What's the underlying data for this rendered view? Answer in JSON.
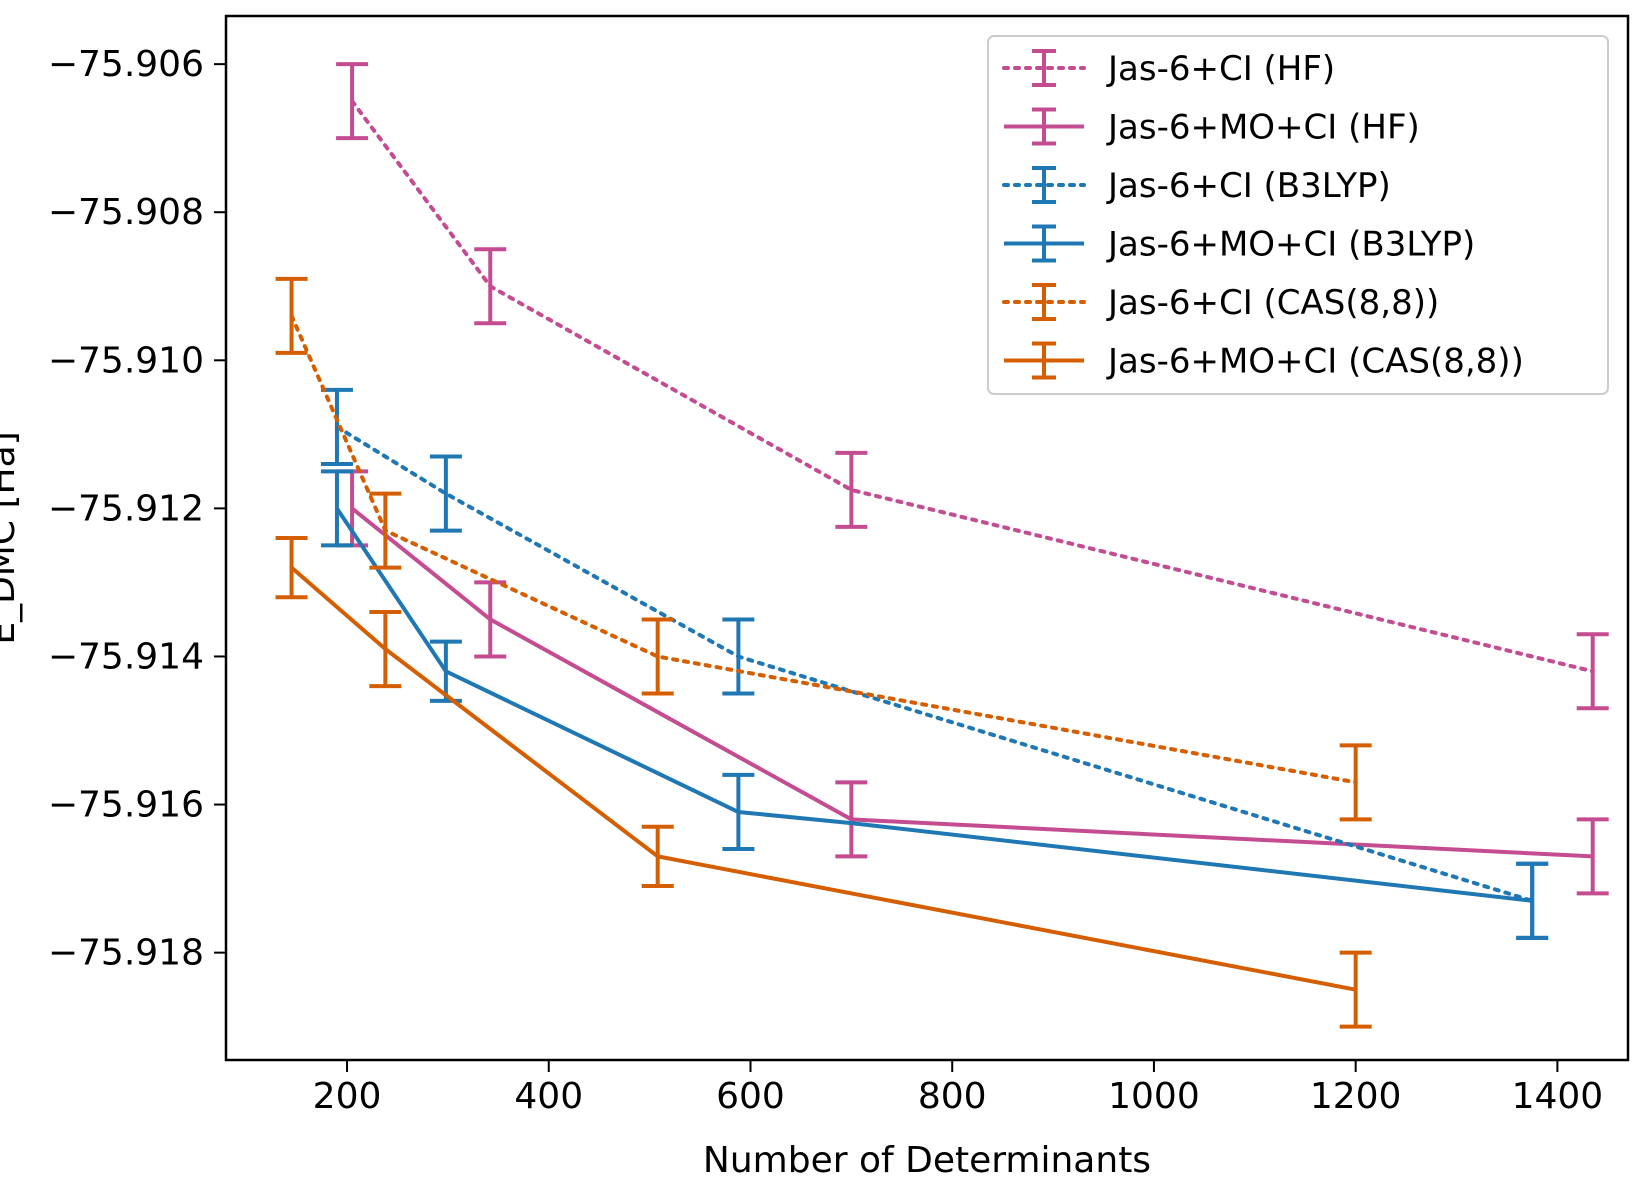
{
  "chart_data": {
    "type": "line",
    "title": "",
    "xlabel": "Number of Determinants",
    "ylabel": "E_DMC [Ha]",
    "xlim": [
      80,
      1470
    ],
    "ylim": [
      -75.91945,
      -75.90535
    ],
    "xticks": [
      200,
      400,
      600,
      800,
      1000,
      1200,
      1400
    ],
    "xtick_labels": [
      "200",
      "400",
      "600",
      "800",
      "1000",
      "1200",
      "1400"
    ],
    "yticks": [
      -75.906,
      -75.908,
      -75.91,
      -75.912,
      -75.914,
      -75.916,
      -75.918
    ],
    "ytick_labels": [
      "−75.906",
      "−75.908",
      "−75.910",
      "−75.912",
      "−75.914",
      "−75.916",
      "−75.918"
    ],
    "grid": false,
    "legend_position": "top-right",
    "series": [
      {
        "name": "Jas-6+CI (HF)",
        "color": "#c44c91",
        "style": "dotted",
        "x": [
          205,
          342,
          700,
          1435
        ],
        "y": [
          -75.9065,
          -75.909,
          -75.91175,
          -75.9142
        ],
        "yerr": [
          0.0005,
          0.0005,
          0.0005,
          0.0005
        ]
      },
      {
        "name": "Jas-6+MO+CI (HF)",
        "color": "#c44c91",
        "style": "solid",
        "x": [
          205,
          342,
          700,
          1435
        ],
        "y": [
          -75.912,
          -75.9135,
          -75.9162,
          -75.9167
        ],
        "yerr": [
          0.0005,
          0.0005,
          0.0005,
          0.0005
        ]
      },
      {
        "name": "Jas-6+CI (B3LYP)",
        "color": "#1f77b4",
        "style": "dotted",
        "x": [
          190,
          298,
          588,
          1375
        ],
        "y": [
          -75.9109,
          -75.9118,
          -75.914,
          -75.9173
        ],
        "yerr": [
          0.0005,
          0.0005,
          0.0005,
          0.0005
        ]
      },
      {
        "name": "Jas-6+MO+CI (B3LYP)",
        "color": "#1f77b4",
        "style": "solid",
        "x": [
          190,
          298,
          588,
          700,
          1375
        ],
        "y": [
          -75.912,
          -75.9142,
          -75.9161,
          -75.91625,
          -75.9173
        ],
        "yerr": [
          0.0005,
          0.0004,
          0.0005,
          0,
          0.0005
        ]
      },
      {
        "name": "Jas-6+CI (CAS(8,8))",
        "color": "#d55e00",
        "style": "dotted",
        "x": [
          145,
          238,
          508,
          1200
        ],
        "y": [
          -75.9094,
          -75.9123,
          -75.914,
          -75.9157
        ],
        "yerr": [
          0.0005,
          0.0005,
          0.0005,
          0.0005
        ]
      },
      {
        "name": "Jas-6+MO+CI (CAS(8,8))",
        "color": "#d55e00",
        "style": "solid",
        "x": [
          145,
          238,
          508,
          1200
        ],
        "y": [
          -75.9128,
          -75.9139,
          -75.9167,
          -75.9185
        ],
        "yerr": [
          0.0004,
          0.0005,
          0.0004,
          0.0005
        ]
      }
    ]
  }
}
